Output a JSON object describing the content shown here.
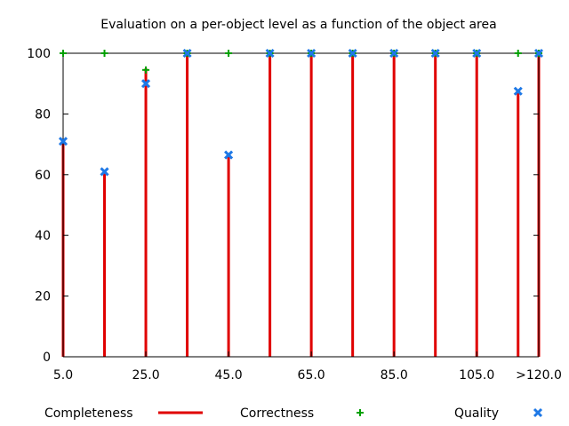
{
  "chart_data": {
    "type": "bar",
    "title": "Evaluation on a per-object level as a function of the object area",
    "xlabel": "",
    "ylabel": "",
    "grid": false,
    "legend_position": "bottom",
    "ylim": [
      0,
      100
    ],
    "xlim": [
      5,
      120
    ],
    "y_ticks": [
      0,
      20,
      40,
      60,
      80,
      100
    ],
    "x_ticks": [
      {
        "value": 5,
        "label": "5.0"
      },
      {
        "value": 25,
        "label": "25.0"
      },
      {
        "value": 45,
        "label": "45.0"
      },
      {
        "value": 65,
        "label": "65.0"
      },
      {
        "value": 85,
        "label": "85.0"
      },
      {
        "value": 105,
        "label": "105.0"
      },
      {
        "value": 120,
        "label": ">120.0"
      }
    ],
    "x": [
      5,
      15,
      25,
      35,
      45,
      55,
      65,
      75,
      85,
      95,
      105,
      115,
      120
    ],
    "series": [
      {
        "name": "Completeness",
        "style": "impulse",
        "color": "#e00000",
        "values": [
          71,
          61,
          95,
          100,
          66,
          100,
          100,
          100,
          100,
          100,
          100,
          88,
          100
        ]
      },
      {
        "name": "Correctness",
        "style": "plus",
        "color": "#00a000",
        "values": [
          100,
          100,
          94.5,
          100,
          100,
          100,
          100,
          100,
          100,
          100,
          100,
          100,
          100
        ]
      },
      {
        "name": "Quality",
        "style": "cross",
        "color": "#1e78e6",
        "values": [
          71,
          61,
          90,
          100,
          66.5,
          100,
          100,
          100,
          100,
          100,
          100,
          87.5,
          100
        ]
      }
    ]
  }
}
